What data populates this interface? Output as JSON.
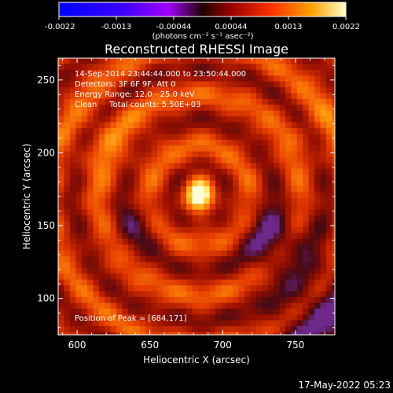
{
  "chart_data": {
    "type": "heatmap",
    "title": "Reconstructed RHESSI Image",
    "xlabel": "Heliocentric X (arcsec)",
    "ylabel": "Heliocentric Y (arcsec)",
    "xlim": [
      587,
      777
    ],
    "ylim": [
      75,
      265
    ],
    "x_ticks": [
      {
        "value": 600,
        "label": "600"
      },
      {
        "value": 650,
        "label": "650"
      },
      {
        "value": 700,
        "label": "700"
      },
      {
        "value": 750,
        "label": "750"
      }
    ],
    "y_ticks": [
      {
        "value": 100,
        "label": "100"
      },
      {
        "value": 150,
        "label": "150"
      },
      {
        "value": 200,
        "label": "200"
      },
      {
        "value": 250,
        "label": "250"
      }
    ],
    "colorbar": {
      "range": [
        -0.0022,
        0.0022
      ],
      "ticks": [
        "-0.0022",
        "-0.0013",
        "-0.00044",
        "0.00044",
        "0.0013",
        "0.0022"
      ],
      "unit_label": "(photons cm⁻² s⁻¹ asec⁻²)"
    },
    "annotations": [
      "14-Sep-2014 23:44:44.000 to 23:50:44.000",
      "Detectors: 3F 6F 9F, Att 0",
      "Energy Range: 12.0 - 25.0 keV",
      "Clean     Total counts: 5.50E+03"
    ],
    "peak_label": "Position of Peak = [684,171]",
    "peak": [
      684,
      171
    ],
    "grid": false,
    "colormap": "red-temperature with blue negatives"
  },
  "footer": {
    "timestamp": "17-May-2022 05:23"
  },
  "colors": {
    "background": "#000000",
    "text": "#ffffff",
    "axis": "#ffffff"
  }
}
